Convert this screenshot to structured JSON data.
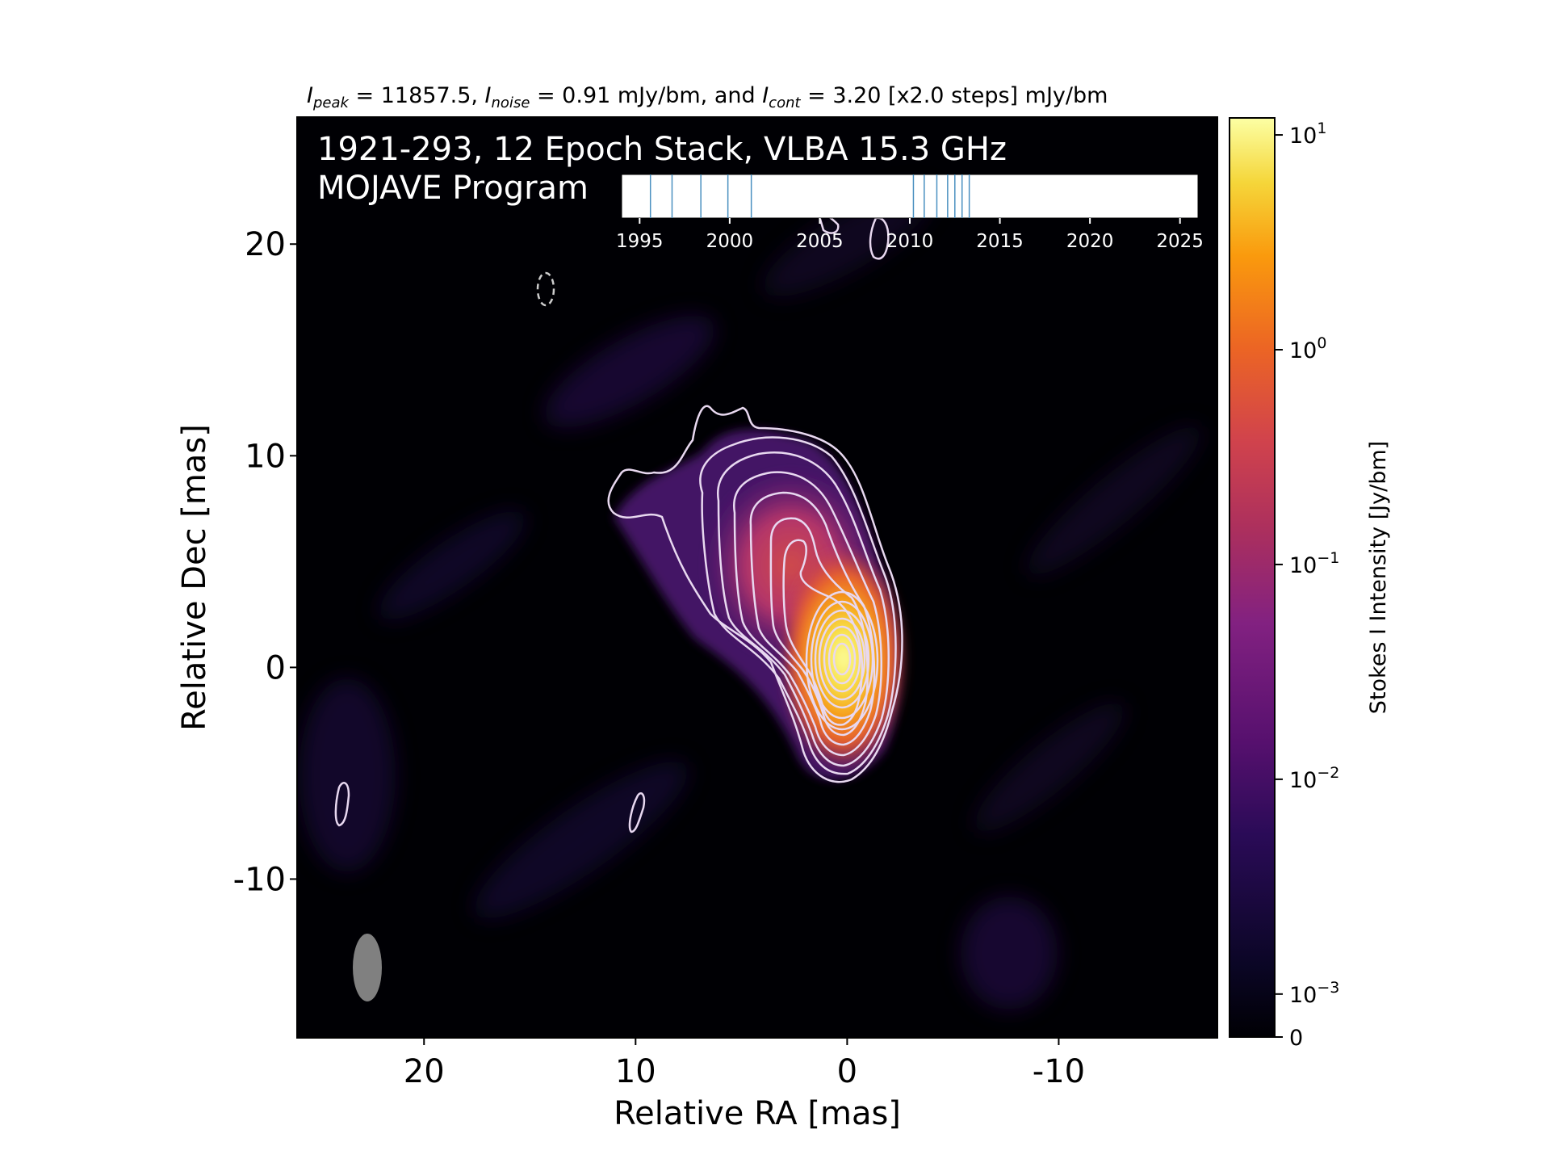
{
  "header": {
    "peak_sym": "I",
    "peak_sub": "peak",
    "peak_text": " = 11857.5, ",
    "noise_sym": "I",
    "noise_sub": "noise",
    "noise_text": " = 0.91 mJy/bm, and ",
    "cont_sym": "I",
    "cont_sub": "cont",
    "cont_text": " = 3.20 [x2.0 steps] mJy/bm"
  },
  "overlay": {
    "line1": "1921-293, 12 Epoch Stack, VLBA 15.3 GHz",
    "line2": "MOJAVE Program"
  },
  "chart_data": [
    {
      "type": "heatmap",
      "title": "",
      "xlabel": "Relative RA [mas]",
      "ylabel": "Relative Dec [mas]",
      "xlim": [
        26,
        -17.5
      ],
      "ylim": [
        -17.5,
        26
      ],
      "x_ticks": [
        20,
        10,
        0,
        -10
      ],
      "x_tick_labels": [
        "20",
        "10",
        "0",
        "-10"
      ],
      "y_ticks": [
        20,
        10,
        0,
        -10
      ],
      "y_tick_labels": [
        "20",
        "10",
        "0",
        "-10"
      ],
      "colormap": "inferno",
      "background": "#000004",
      "contour_color": "#e8d8f0",
      "peak_position": [
        0,
        0
      ],
      "secondary_component_position": [
        2.5,
        5.5
      ],
      "beam_position": [
        22.3,
        -14.4
      ],
      "beam_color": "#808080"
    },
    {
      "type": "bar",
      "title": "",
      "xlabel": "",
      "ylabel": "Stokes I Intensity [Jy/bm]",
      "scale": "symlog",
      "ylim": [
        0,
        12
      ],
      "ticks": [
        0,
        0.001,
        0.01,
        0.1,
        1,
        10
      ],
      "tick_labels": [
        {
          "base": "0",
          "exp": ""
        },
        {
          "base": "10",
          "exp": "−3"
        },
        {
          "base": "10",
          "exp": "−2"
        },
        {
          "base": "10",
          "exp": "−1"
        },
        {
          "base": "10",
          "exp": "0"
        },
        {
          "base": "10",
          "exp": "1"
        }
      ],
      "colormap": "inferno"
    },
    {
      "type": "timeline",
      "xlim": [
        1994,
        2026
      ],
      "ticks": [
        1995,
        2000,
        2005,
        2010,
        2015,
        2020,
        2025
      ],
      "tick_labels": [
        "1995",
        "2000",
        "2005",
        "2010",
        "2015",
        "2020",
        "2025"
      ],
      "epochs": [
        1995.6,
        1996.8,
        1998.4,
        1999.9,
        2001.2,
        2010.2,
        2010.8,
        2011.5,
        2012.1,
        2012.5,
        2012.9,
        2013.3
      ],
      "epoch_color": "#4a90c0"
    }
  ]
}
